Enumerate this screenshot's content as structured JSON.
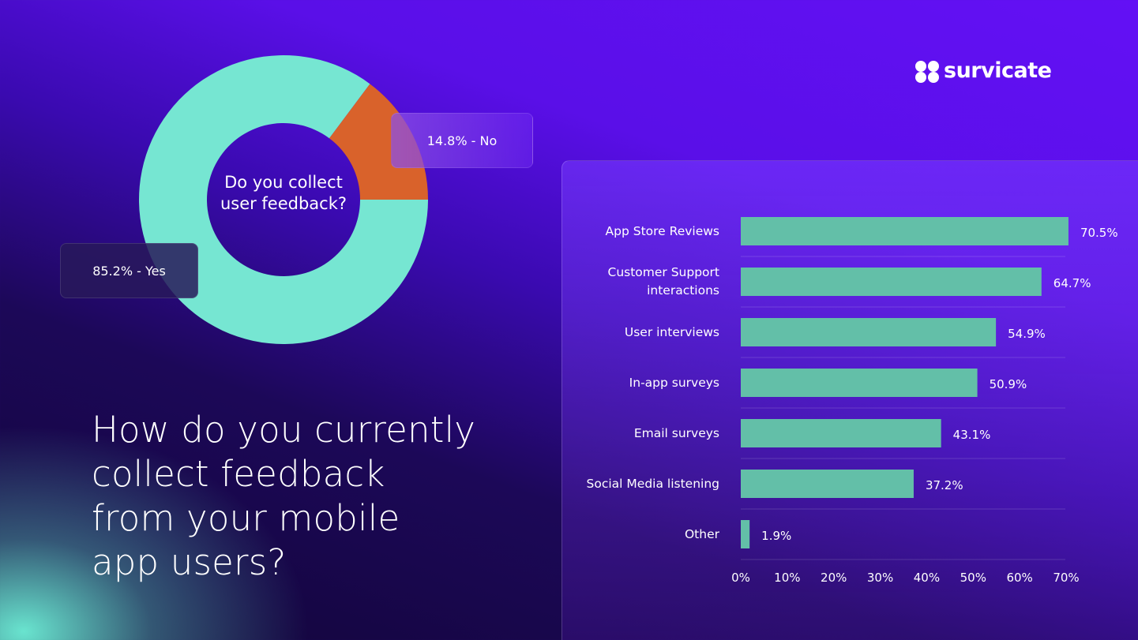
{
  "brand": "survicate",
  "headline": "How do you currently collect feedback from your mobile app users?",
  "chart_data": [
    {
      "type": "donut",
      "title": "Do you collect user feedback?",
      "values": [
        85.2,
        14.8
      ],
      "value_labels": [
        "85.2% - Yes",
        "14.8% - No"
      ],
      "colors": [
        "#76e6d2",
        "#d9622b"
      ]
    },
    {
      "type": "hbar",
      "categories": [
        "App Store Reviews",
        "Customer Support interactions",
        "User interviews",
        "In-app surveys",
        "Email surveys",
        "Social Media listening",
        "Other"
      ],
      "values": [
        70.5,
        64.7,
        54.9,
        50.9,
        43.1,
        37.2,
        1.9
      ],
      "value_labels": [
        "70.5%",
        "64.7%",
        "54.9%",
        "50.9%",
        "43.1%",
        "37.2%",
        "1.9%"
      ],
      "color": "#63bfa8",
      "xlim": [
        0,
        70
      ],
      "xticks": [
        {
          "value": 0,
          "label": "0%"
        },
        {
          "value": 10,
          "label": "10%"
        },
        {
          "value": 20,
          "label": "20%"
        },
        {
          "value": 30,
          "label": "30%"
        },
        {
          "value": 40,
          "label": "40%"
        },
        {
          "value": 50,
          "label": "50%"
        },
        {
          "value": 60,
          "label": "60%"
        },
        {
          "value": 70,
          "label": "70%"
        }
      ]
    }
  ]
}
